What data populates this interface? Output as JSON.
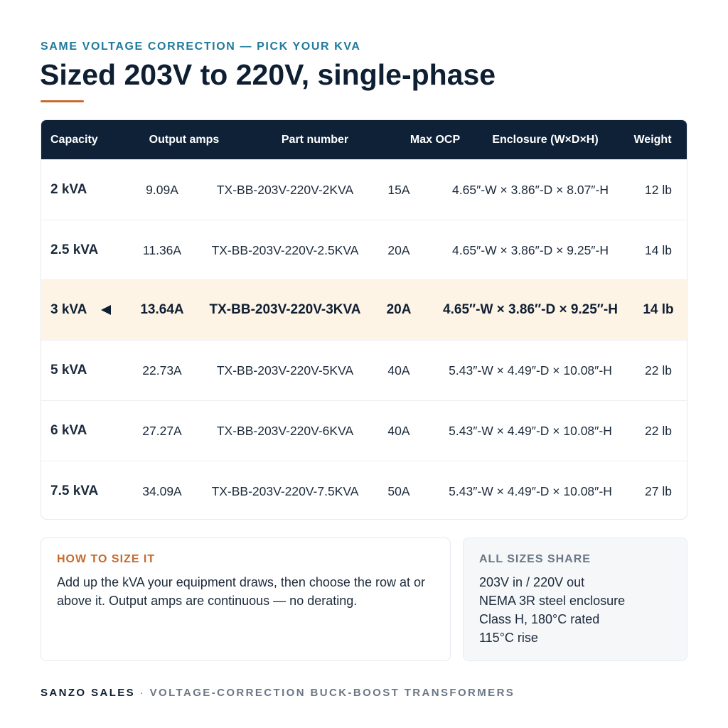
{
  "header": {
    "eyebrow": "SAME VOLTAGE CORRECTION — PICK YOUR KVA",
    "title": "Sized 203V to 220V, single-phase"
  },
  "table": {
    "columns": [
      "Capacity",
      "Output amps",
      "Part number",
      "Max OCP",
      "Enclosure (W×D×H)",
      "Weight"
    ],
    "rows": [
      [
        "2 kVA",
        "9.09A",
        "TX-BB-203V-220V-2KVA",
        "15A",
        "4.65″-W × 3.86″-D × 8.07″-H",
        "12 lb"
      ],
      [
        "2.5 kVA",
        "11.36A",
        "TX-BB-203V-220V-2.5KVA",
        "20A",
        "4.65″-W × 3.86″-D × 9.25″-H",
        "14 lb"
      ],
      [
        "3 kVA",
        "13.64A",
        "TX-BB-203V-220V-3KVA",
        "20A",
        "4.65″-W × 3.86″-D × 9.25″-H",
        "14 lb"
      ],
      [
        "5 kVA",
        "22.73A",
        "TX-BB-203V-220V-5KVA",
        "40A",
        "5.43″-W × 4.49″-D × 10.08″-H",
        "22 lb"
      ],
      [
        "6 kVA",
        "27.27A",
        "TX-BB-203V-220V-6KVA",
        "40A",
        "5.43″-W × 4.49″-D × 10.08″-H",
        "22 lb"
      ],
      [
        "7.5 kVA",
        "34.09A",
        "TX-BB-203V-220V-7.5KVA",
        "50A",
        "5.43″-W × 4.49″-D × 10.08″-H",
        "27 lb"
      ]
    ]
  },
  "size_note": {
    "title": "HOW TO SIZE IT",
    "text": "Add up the kVA your equipment draws, then choose the row at or above it. Output amps are continuous — no derating."
  },
  "shared": {
    "title": "ALL SIZES SHARE",
    "items": [
      "203V in / 220V out",
      "NEMA 3R steel enclosure",
      "Class H, 180°C rated",
      "115°C rise"
    ]
  },
  "footer": {
    "brand": "SANZO SALES",
    "separator": "·",
    "tagline": "VOLTAGE-CORRECTION BUCK-BOOST TRANSFORMERS"
  }
}
